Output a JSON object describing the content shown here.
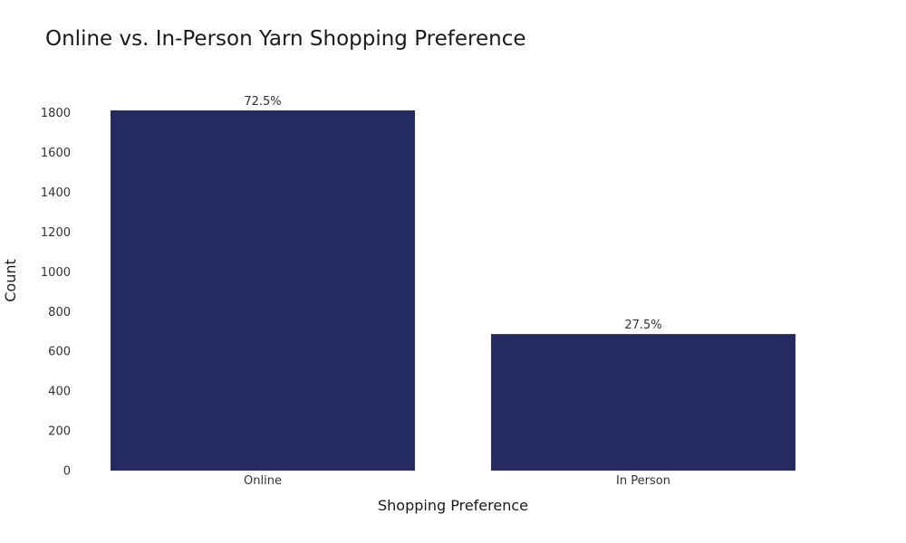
{
  "chart_data": {
    "type": "bar",
    "title": "Online vs. In-Person Yarn Shopping Preference",
    "xlabel": "Shopping Preference",
    "ylabel": "Count",
    "categories": [
      "Online",
      "In Person"
    ],
    "values": [
      1812,
      687
    ],
    "data_labels": [
      "72.5%",
      "27.5%"
    ],
    "ylim": [
      0,
      1812
    ],
    "yticks": [
      0,
      200,
      400,
      600,
      800,
      1000,
      1200,
      1400,
      1600,
      1800
    ],
    "grid": false,
    "bar_color": "#252a61"
  }
}
